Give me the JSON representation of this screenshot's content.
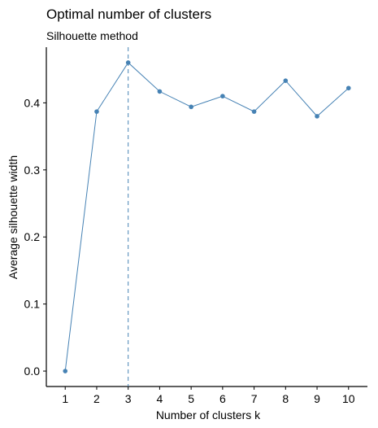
{
  "chart_data": {
    "type": "line",
    "title": "Optimal number of clusters",
    "subtitle": "Silhouette method",
    "xlabel": "Number of clusters k",
    "ylabel": "Average silhouette width",
    "x": [
      1,
      2,
      3,
      4,
      5,
      6,
      7,
      8,
      9,
      10
    ],
    "series": [
      {
        "values": [
          0.0,
          0.387,
          0.46,
          0.417,
          0.394,
          0.41,
          0.387,
          0.433,
          0.38,
          0.422
        ]
      }
    ],
    "xlim": [
      0.4,
      10.6
    ],
    "ylim": [
      -0.023,
      0.483
    ],
    "y_ticks": [
      0.0,
      0.1,
      0.2,
      0.3,
      0.4
    ],
    "y_tick_labels": [
      "0.0",
      "0.1",
      "0.2",
      "0.3",
      "0.4"
    ],
    "x_tick_labels": [
      "1",
      "2",
      "3",
      "4",
      "5",
      "6",
      "7",
      "8",
      "9",
      "10"
    ],
    "optimal_k": 3,
    "grid": false,
    "colors": {
      "line": "#4682B4",
      "point": "#4682B4",
      "vline": "#4682B4",
      "axis": "#000000"
    }
  }
}
